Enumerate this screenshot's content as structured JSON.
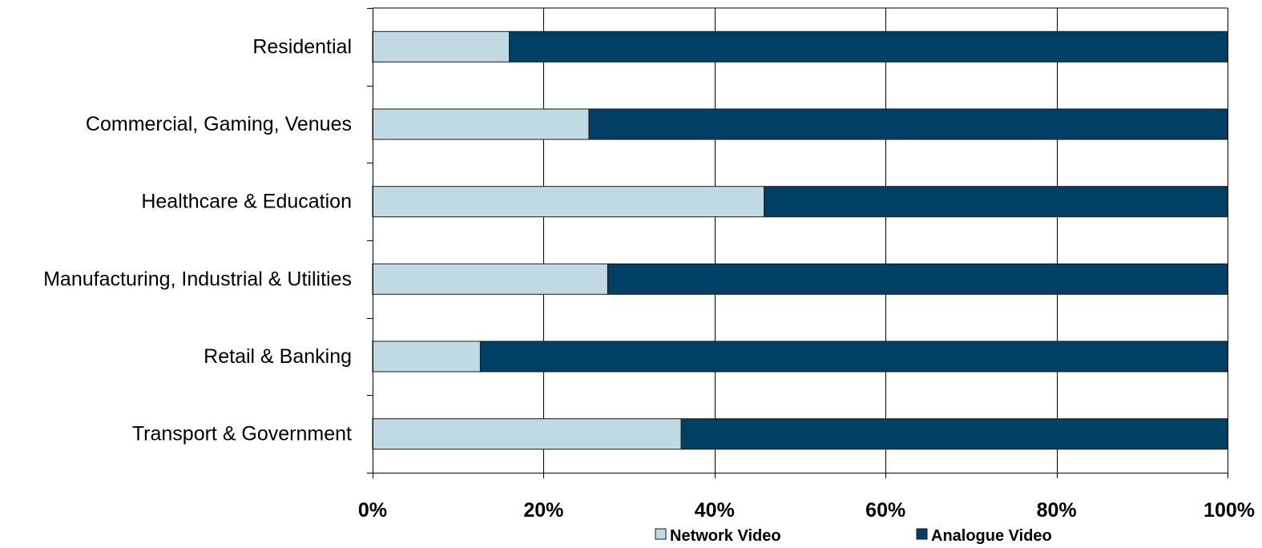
{
  "chart_data": {
    "type": "bar",
    "orientation": "horizontal",
    "stacked": true,
    "percent_stacked": true,
    "categories": [
      "Residential",
      "Commercial, Gaming, Venues",
      "Healthcare & Education",
      "Manufacturing, Industrial & Utilities",
      "Retail & Banking",
      "Transport & Government"
    ],
    "series": [
      {
        "name": "Network Video",
        "color": "#bfdae3",
        "values": [
          16,
          25.3,
          45.8,
          27.5,
          12.6,
          36.1
        ]
      },
      {
        "name": "Analogue Video",
        "color": "#003f66",
        "values": [
          84,
          74.7,
          54.2,
          72.5,
          87.4,
          63.9
        ]
      }
    ],
    "xlim": [
      0,
      100
    ],
    "x_ticks": [
      0,
      20,
      40,
      60,
      80,
      100
    ],
    "x_tick_labels": [
      "0%",
      "20%",
      "40%",
      "60%",
      "80%",
      "100%"
    ],
    "grid": "vertical",
    "legend_position": "bottom",
    "title": "",
    "xlabel": "",
    "ylabel": ""
  }
}
